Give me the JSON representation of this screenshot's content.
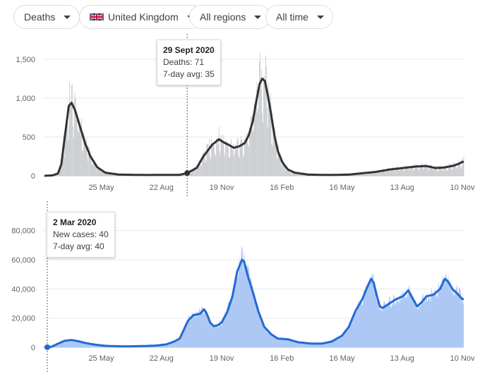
{
  "filters": {
    "metric": "Deaths",
    "country": "United Kingdom",
    "region": "All regions",
    "time": "All time",
    "country_icon": "uk-flag-icon"
  },
  "tooltip_deaths": {
    "date": "29 Sept 2020",
    "value_line": "Deaths: 71",
    "avg_line": "7-day avg: 35"
  },
  "tooltip_cases": {
    "date": "2 Mar 2020",
    "value_line": "New cases: 40",
    "avg_line": "7-day avg: 40"
  },
  "colors": {
    "deaths_bar": "#c4c7cb",
    "deaths_line": "#333333",
    "cases_area": "#adc8f5",
    "cases_line": "#2469d1"
  },
  "chart_data": [
    {
      "type": "bar",
      "title": "Deaths",
      "x_unit": "days since 2 Mar 2020",
      "x_range": [
        0,
        620
      ],
      "ylim": [
        0,
        1700
      ],
      "yticks": [
        0,
        500,
        1000,
        1500
      ],
      "ytick_labels": [
        "0",
        "500",
        "1,000",
        "1,500"
      ],
      "xticks": [
        {
          "x": 84,
          "label": "25 May"
        },
        {
          "x": 173,
          "label": "22 Aug"
        },
        {
          "x": 262,
          "label": "19 Nov"
        },
        {
          "x": 351,
          "label": "16 Feb"
        },
        {
          "x": 440,
          "label": "16 May"
        },
        {
          "x": 529,
          "label": "13 Aug"
        },
        {
          "x": 618,
          "label": "10 Nov"
        }
      ],
      "avg_keypoints": [
        [
          0,
          0
        ],
        [
          12,
          5
        ],
        [
          20,
          30
        ],
        [
          25,
          150
        ],
        [
          30,
          500
        ],
        [
          36,
          900
        ],
        [
          40,
          940
        ],
        [
          45,
          850
        ],
        [
          52,
          650
        ],
        [
          60,
          420
        ],
        [
          68,
          250
        ],
        [
          78,
          110
        ],
        [
          90,
          40
        ],
        [
          110,
          15
        ],
        [
          150,
          10
        ],
        [
          200,
          12
        ],
        [
          211,
          35
        ],
        [
          225,
          100
        ],
        [
          235,
          250
        ],
        [
          248,
          400
        ],
        [
          258,
          470
        ],
        [
          265,
          430
        ],
        [
          272,
          400
        ],
        [
          280,
          360
        ],
        [
          288,
          380
        ],
        [
          296,
          420
        ],
        [
          302,
          520
        ],
        [
          308,
          700
        ],
        [
          313,
          950
        ],
        [
          318,
          1180
        ],
        [
          322,
          1250
        ],
        [
          326,
          1220
        ],
        [
          330,
          1050
        ],
        [
          335,
          800
        ],
        [
          340,
          520
        ],
        [
          345,
          320
        ],
        [
          352,
          170
        ],
        [
          360,
          80
        ],
        [
          370,
          40
        ],
        [
          390,
          15
        ],
        [
          420,
          10
        ],
        [
          450,
          15
        ],
        [
          490,
          50
        ],
        [
          510,
          80
        ],
        [
          530,
          100
        ],
        [
          550,
          120
        ],
        [
          565,
          125
        ],
        [
          578,
          100
        ],
        [
          590,
          105
        ],
        [
          605,
          130
        ],
        [
          614,
          160
        ],
        [
          618,
          180
        ]
      ],
      "series": [
        {
          "name": "Daily deaths",
          "role": "bars",
          "scale_of_avg": true
        },
        {
          "name": "7-day avg",
          "role": "line"
        }
      ]
    },
    {
      "type": "area",
      "title": "New cases",
      "x_unit": "days since 2 Mar 2020",
      "x_range": [
        0,
        620
      ],
      "ylim": [
        0,
        90000
      ],
      "yticks": [
        0,
        20000,
        40000,
        60000,
        80000
      ],
      "ytick_labels": [
        "0",
        "20,000",
        "40,000",
        "60,000",
        "80,000"
      ],
      "xticks": [
        {
          "x": 84,
          "label": "25 May"
        },
        {
          "x": 173,
          "label": "22 Aug"
        },
        {
          "x": 262,
          "label": "19 Nov"
        },
        {
          "x": 351,
          "label": "16 Feb"
        },
        {
          "x": 440,
          "label": "16 May"
        },
        {
          "x": 529,
          "label": "13 Aug"
        },
        {
          "x": 618,
          "label": "10 Nov"
        }
      ],
      "avg_keypoints": [
        [
          0,
          40
        ],
        [
          10,
          300
        ],
        [
          20,
          2500
        ],
        [
          30,
          4500
        ],
        [
          40,
          5000
        ],
        [
          50,
          4200
        ],
        [
          60,
          3000
        ],
        [
          75,
          1800
        ],
        [
          90,
          1000
        ],
        [
          110,
          700
        ],
        [
          130,
          700
        ],
        [
          150,
          900
        ],
        [
          165,
          1200
        ],
        [
          180,
          2000
        ],
        [
          192,
          4000
        ],
        [
          200,
          6000
        ],
        [
          206,
          12000
        ],
        [
          212,
          18000
        ],
        [
          220,
          22000
        ],
        [
          230,
          23000
        ],
        [
          236,
          26000
        ],
        [
          240,
          23000
        ],
        [
          245,
          17000
        ],
        [
          250,
          14500
        ],
        [
          256,
          15000
        ],
        [
          262,
          17000
        ],
        [
          270,
          24000
        ],
        [
          278,
          35000
        ],
        [
          285,
          52000
        ],
        [
          292,
          60000
        ],
        [
          295,
          59000
        ],
        [
          300,
          50000
        ],
        [
          308,
          38000
        ],
        [
          316,
          25000
        ],
        [
          325,
          14000
        ],
        [
          335,
          9000
        ],
        [
          345,
          6000
        ],
        [
          360,
          5500
        ],
        [
          375,
          3500
        ],
        [
          395,
          2500
        ],
        [
          410,
          2500
        ],
        [
          425,
          4000
        ],
        [
          440,
          8000
        ],
        [
          450,
          14000
        ],
        [
          460,
          25000
        ],
        [
          470,
          33000
        ],
        [
          478,
          42000
        ],
        [
          483,
          47000
        ],
        [
          487,
          44000
        ],
        [
          491,
          36000
        ],
        [
          496,
          28000
        ],
        [
          500,
          27000
        ],
        [
          510,
          30000
        ],
        [
          520,
          33000
        ],
        [
          530,
          35000
        ],
        [
          538,
          39000
        ],
        [
          545,
          33000
        ],
        [
          551,
          28000
        ],
        [
          558,
          31000
        ],
        [
          565,
          35000
        ],
        [
          575,
          36000
        ],
        [
          585,
          40000
        ],
        [
          592,
          47000
        ],
        [
          597,
          45000
        ],
        [
          603,
          40000
        ],
        [
          610,
          37000
        ],
        [
          618,
          33000
        ]
      ],
      "series": [
        {
          "name": "Daily new cases",
          "role": "area"
        },
        {
          "name": "7-day avg",
          "role": "line"
        }
      ]
    }
  ]
}
